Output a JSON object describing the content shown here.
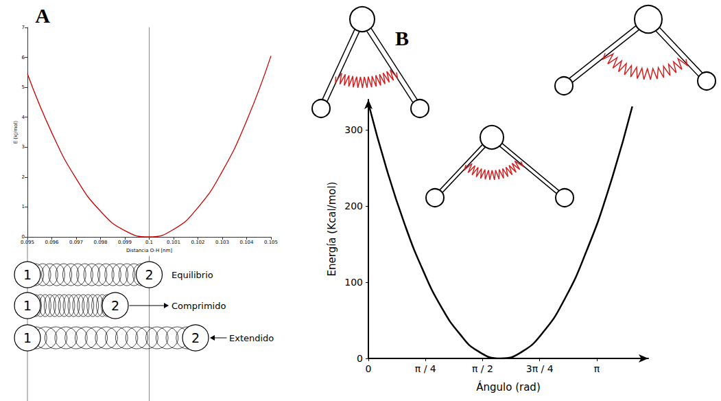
{
  "chart_data": [
    {
      "panel": "A",
      "type": "line",
      "x_label": "Distancia O-H [nm]",
      "y_label": "E (kJ/mol)",
      "x": [
        0.095,
        0.096,
        0.097,
        0.098,
        0.099,
        0.1,
        0.101,
        0.102,
        0.103,
        0.104,
        0.105
      ],
      "values": [
        5.45,
        3.48,
        1.95,
        0.86,
        0.21,
        0,
        0.25,
        0.98,
        2.19,
        3.88,
        6.05
      ],
      "color": "#cc0000",
      "xlim": [
        0.095,
        0.105
      ],
      "ylim": [
        0,
        7
      ],
      "xticks": [
        0.095,
        0.096,
        0.097,
        0.098,
        0.099,
        0.1,
        0.101,
        0.102,
        0.103,
        0.104,
        0.105
      ],
      "yticks": [
        0,
        1,
        2,
        3,
        4,
        5,
        6,
        7
      ],
      "grid": false,
      "annotations": [
        "Equilibrio",
        "Comprimido",
        "Extendido"
      ],
      "atom_labels": [
        "1",
        "2"
      ]
    },
    {
      "panel": "B",
      "type": "line",
      "x_label": "Ángulo (rad)",
      "y_label": "Energía (Kcal/mol)",
      "x": [
        0,
        0.25,
        0.5,
        0.75,
        1.0,
        1.25,
        1.5,
        1.82,
        2.1,
        2.4,
        2.7,
        3.0,
        3.3,
        3.63
      ],
      "values": [
        335,
        249,
        176,
        116,
        68,
        33,
        10,
        0,
        8,
        34,
        78,
        141,
        221,
        331
      ],
      "color": "#000000",
      "xlim": [
        0,
        3.85
      ],
      "ylim": [
        0,
        340
      ],
      "xticks": [
        0,
        {
          "value": 0.7854,
          "label": "π / 4"
        },
        {
          "value": 1.5708,
          "label": "π / 2"
        },
        {
          "value": 2.3562,
          "label": "3π / 4"
        },
        {
          "value": 3.1416,
          "label": "π"
        }
      ],
      "yticks": [
        0,
        100,
        200,
        300
      ],
      "grid": false
    }
  ]
}
